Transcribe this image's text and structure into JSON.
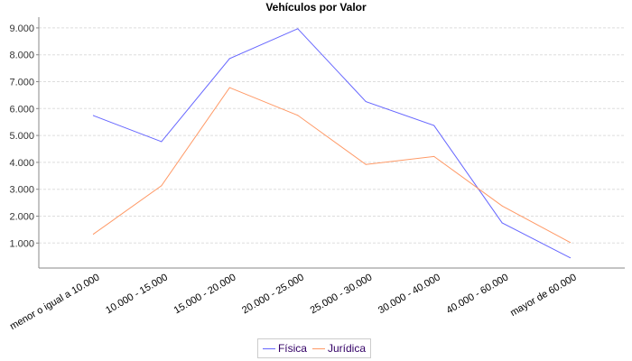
{
  "chart_data": {
    "type": "line",
    "title": "Vehículos por Valor",
    "xlabel": "",
    "ylabel": "",
    "categories": [
      "menor o igual a 10.000",
      "10.000 - 15.000",
      "15.000 - 20.000",
      "20.000 - 25.000",
      "25.000 - 30.000",
      "30.000 - 40.000",
      "40.000 - 60.000",
      "mayor de 60.000"
    ],
    "series": [
      {
        "name": "Física",
        "color": "#6666ff",
        "values": [
          5740,
          4770,
          7860,
          8970,
          6260,
          5370,
          1750,
          450
        ]
      },
      {
        "name": "Jurídica",
        "color": "#ff9966",
        "values": [
          1330,
          3130,
          6780,
          5750,
          3920,
          4220,
          2380,
          1020
        ]
      }
    ],
    "ylim": [
      70,
      9400
    ],
    "yticks": [
      1000,
      2000,
      3000,
      4000,
      5000,
      6000,
      7000,
      8000,
      9000
    ],
    "ytick_labels": [
      "1.000",
      "2.000",
      "3.000",
      "4.000",
      "5.000",
      "6.000",
      "7.000",
      "8.000",
      "9.000"
    ],
    "grid": "horizontal dashed",
    "legend_position": "bottom"
  }
}
